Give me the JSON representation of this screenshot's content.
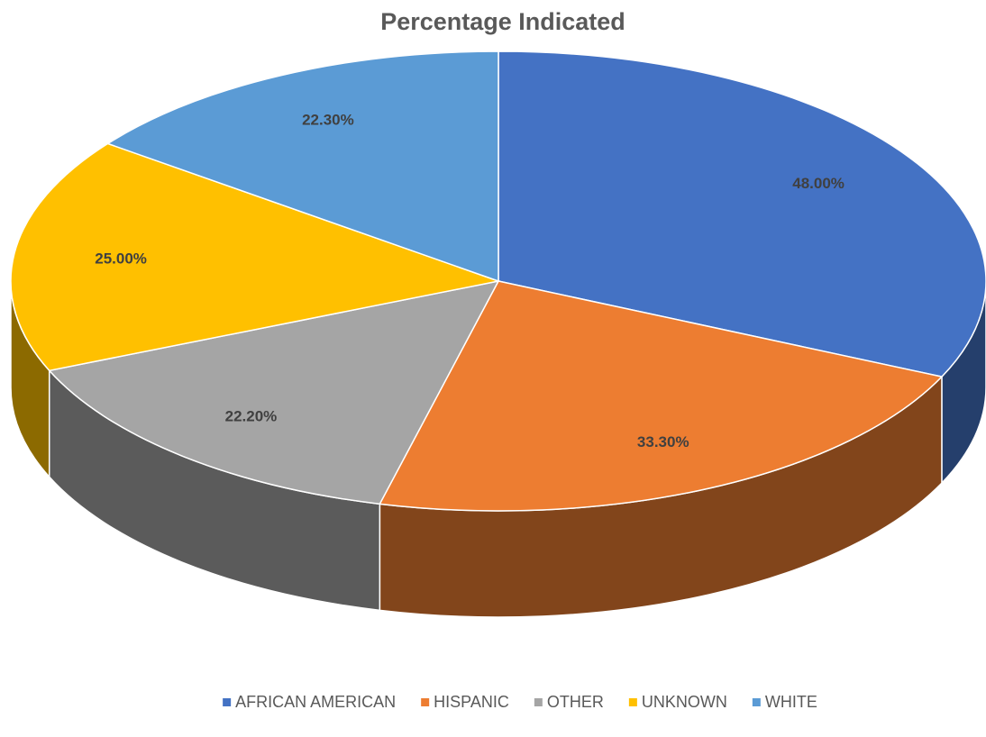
{
  "chart_data": {
    "type": "pie",
    "title": "Percentage Indicated",
    "categories": [
      "AFRICAN AMERICAN",
      "HISPANIC",
      "OTHER",
      "UNKNOWN",
      "WHITE"
    ],
    "values": [
      48,
      33.3,
      22.2,
      25,
      22.3
    ],
    "value_labels": [
      "48.00%",
      "33.30%",
      "22.20%",
      "25.00%",
      "22.30%"
    ],
    "colors": [
      "#4472c4",
      "#ed7d31",
      "#a5a5a5",
      "#ffc000",
      "#5b9bd5"
    ],
    "legend": "bottom"
  }
}
